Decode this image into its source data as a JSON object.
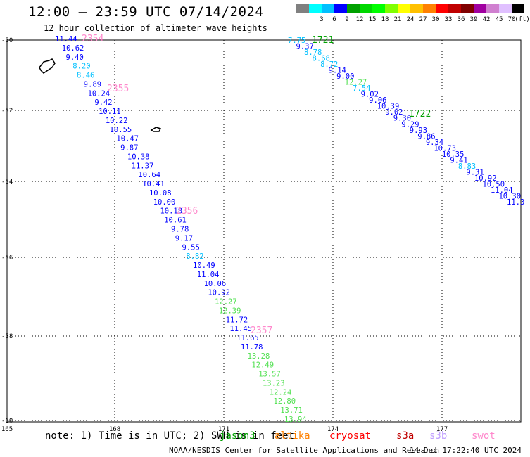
{
  "title": "12:00 – 23:59 UTC 07/14/2024",
  "subtitle": "12 hour collection of altimeter wave heights",
  "legend": {
    "unit": "(ft)",
    "items": [
      {
        "label": "",
        "color": "#808080"
      },
      {
        "label": "3",
        "color": "#00ffff"
      },
      {
        "label": "6",
        "color": "#00c0ff"
      },
      {
        "label": "9",
        "color": "#0000ff"
      },
      {
        "label": "12",
        "color": "#00a000"
      },
      {
        "label": "15",
        "color": "#00d800"
      },
      {
        "label": "18",
        "color": "#00ff00"
      },
      {
        "label": "21",
        "color": "#80ff00"
      },
      {
        "label": "24",
        "color": "#ffff00"
      },
      {
        "label": "27",
        "color": "#ffc000"
      },
      {
        "label": "30",
        "color": "#ff8000"
      },
      {
        "label": "33",
        "color": "#ff0000"
      },
      {
        "label": "36",
        "color": "#c00000"
      },
      {
        "label": "39",
        "color": "#800000"
      },
      {
        "label": "42",
        "color": "#a000a0"
      },
      {
        "label": "45",
        "color": "#d080d0"
      },
      {
        "label": "70",
        "color": "#e0c0ff"
      },
      {
        "label": "",
        "color": "#000000"
      }
    ]
  },
  "axes": {
    "lat_labels": [
      "-50",
      "-52",
      "-54",
      "-56",
      "-58",
      "-60"
    ],
    "lon_labels": [
      "165",
      "168",
      "171",
      "174",
      "177"
    ]
  },
  "track_a": {
    "pass_labels": [
      "2354",
      "2355",
      "2356",
      "2357"
    ],
    "values": [
      "11.44",
      "10.62",
      "9.40",
      "8.20",
      "8.46",
      "9.89",
      "10.24",
      "9.42",
      "10.11",
      "10.22",
      "10.55",
      "10.47",
      "9.87",
      "10.38",
      "11.37",
      "10.64",
      "10.41",
      "10.08",
      "10.00",
      "10.18",
      "10.61",
      "9.78",
      "9.17",
      "9.55",
      "8.82",
      "10.49",
      "11.04",
      "10.06",
      "10.92",
      "12.27",
      "12.39",
      "11.72",
      "11.45",
      "11.65",
      "11.78",
      "13.28",
      "12.49",
      "13.57",
      "13.23",
      "12.24",
      "12.80",
      "13.71",
      "13.94"
    ]
  },
  "track_b": {
    "pass_labels": [
      "1721",
      "1722"
    ],
    "values": [
      "7.75",
      "9.37",
      "8.78",
      "8.68",
      "8.72",
      "9.14",
      "9.00",
      "12.27",
      "7.54",
      "9.02",
      "9.06",
      "10.39",
      "9.02",
      "9.30",
      "9.29",
      "9.93",
      "9.86",
      "9.34",
      "10.73",
      "10.35",
      "9.41",
      "8.83",
      "9.31",
      "10.92",
      "10.50",
      "11.04",
      "10.30",
      "11.3"
    ]
  },
  "note": "note: 1) Time is in UTC; 2) SWH is in feet",
  "satellites": [
    {
      "name": "jason3",
      "color": "#00a000"
    },
    {
      "name": "altika",
      "color": "#ff8000"
    },
    {
      "name": "cryosat",
      "color": "#ff0000"
    },
    {
      "name": "s3a",
      "color": "#c00000"
    },
    {
      "name": "s3b",
      "color": "#c0a0ff"
    },
    {
      "name": "swot",
      "color": "#ff88cc"
    }
  ],
  "footer": {
    "credit": "NOAA/NESDIS Center for Satellite Applications and Research",
    "timestamp": "14 Dec 17:22:40 UTC 2024"
  }
}
